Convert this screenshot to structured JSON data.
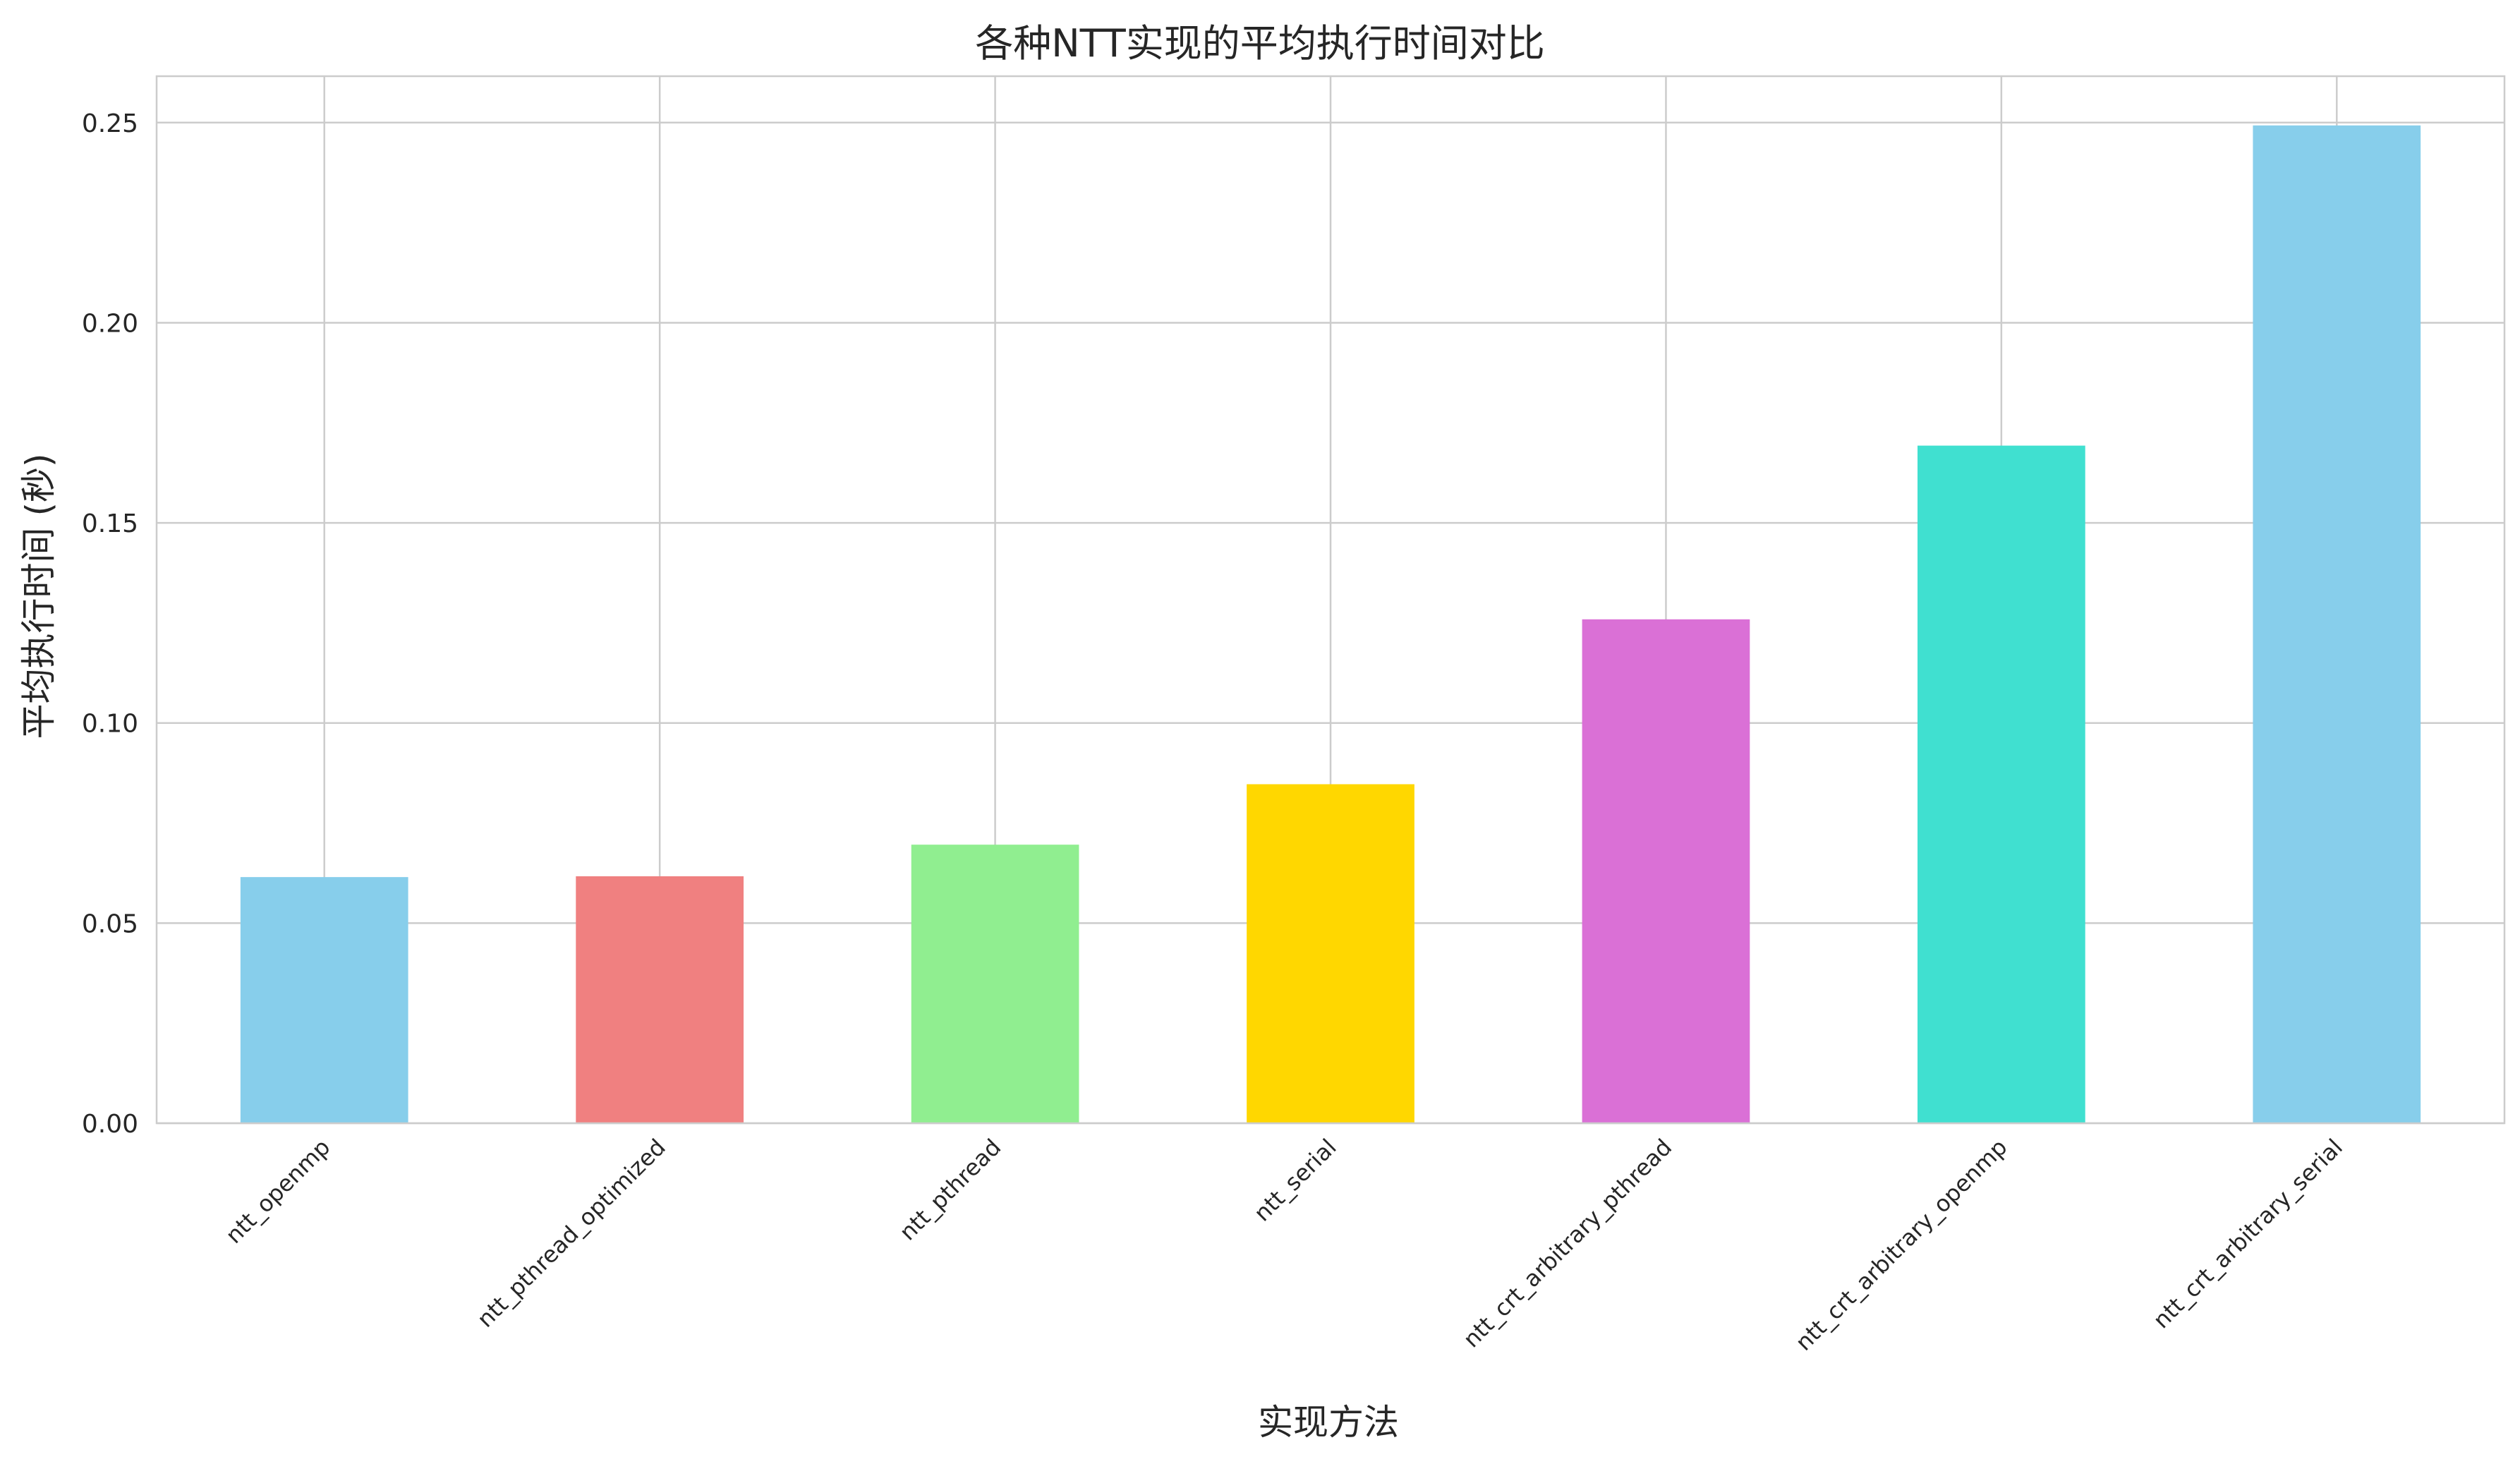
{
  "chart_data": {
    "type": "bar",
    "title": "各种NTT实现的平均执行时间对比",
    "xlabel": "实现方法",
    "ylabel": "平均执行时间 (秒)",
    "categories": [
      "ntt_openmp",
      "ntt_pthread_optimized",
      "ntt_pthread",
      "ntt_serial",
      "ntt_crt_arbitrary_pthread",
      "ntt_crt_arbitrary_openmp",
      "ntt_crt_arbitrary_serial"
    ],
    "values": [
      0.0615,
      0.0617,
      0.0696,
      0.0847,
      0.1259,
      0.1693,
      0.2493
    ],
    "colors": [
      "#87CEEB",
      "#F08080",
      "#90EE90",
      "#FFD700",
      "#DA70D6",
      "#40E0D0",
      "#87CEEB"
    ],
    "ylim": [
      0,
      0.2616
    ],
    "yticks": [
      0.0,
      0.05,
      0.1,
      0.15,
      0.2,
      0.25
    ],
    "ytick_labels": [
      "0.00",
      "0.05",
      "0.10",
      "0.15",
      "0.20",
      "0.25"
    ],
    "grid": true,
    "legend": "none"
  }
}
